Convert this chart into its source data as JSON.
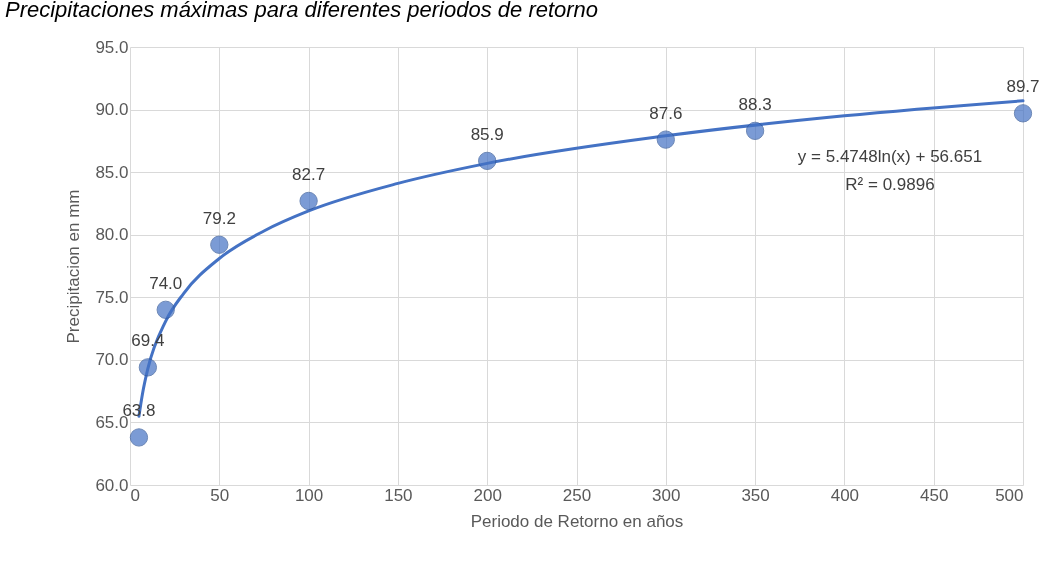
{
  "chart_data": {
    "type": "scatter",
    "title": "Precipitaciones máximas para diferentes periodos de retorno",
    "xlabel": "Periodo de Retorno en años",
    "ylabel": "Precipitacion en mm",
    "x": [
      5,
      10,
      20,
      50,
      100,
      200,
      300,
      350,
      500
    ],
    "series": [
      {
        "color": "#4472c4",
        "marker": "circle",
        "values": [
          63.8,
          69.4,
          74.0,
          79.2,
          82.7,
          85.9,
          87.6,
          88.3,
          89.7
        ],
        "value_labels": [
          "63.8",
          "69.4",
          "74.0",
          "79.2",
          "82.7",
          "85.9",
          "87.6",
          "88.3",
          "89.7"
        ]
      },
      {
        "type": "line",
        "color": "#4472c4",
        "x": [
          5,
          7,
          10,
          20,
          30,
          50,
          75,
          100,
          150,
          200,
          300,
          400,
          500
        ],
        "values": [
          65.5,
          67.3,
          69.3,
          73.1,
          75.3,
          78.1,
          80.3,
          81.9,
          84.1,
          85.7,
          87.9,
          89.5,
          90.7
        ]
      }
    ],
    "annotations": [
      "y = 5.4748ln(x) + 56.651",
      "R² = 0.9896"
    ],
    "grid": true,
    "xlim": [
      0,
      500
    ],
    "xticks": [
      0,
      50,
      100,
      150,
      200,
      250,
      300,
      350,
      400,
      450,
      500
    ],
    "ylim": [
      60,
      95
    ],
    "yticks": [
      {
        "value": 60,
        "label": "60.0"
      },
      {
        "value": 65,
        "label": "65.0"
      },
      {
        "value": 70,
        "label": "70.0"
      },
      {
        "value": 75,
        "label": "75.0"
      },
      {
        "value": 80,
        "label": "80.0"
      },
      {
        "value": 85,
        "label": "85.0"
      },
      {
        "value": 90,
        "label": "90.0"
      },
      {
        "value": 95,
        "label": "95.0"
      }
    ]
  }
}
